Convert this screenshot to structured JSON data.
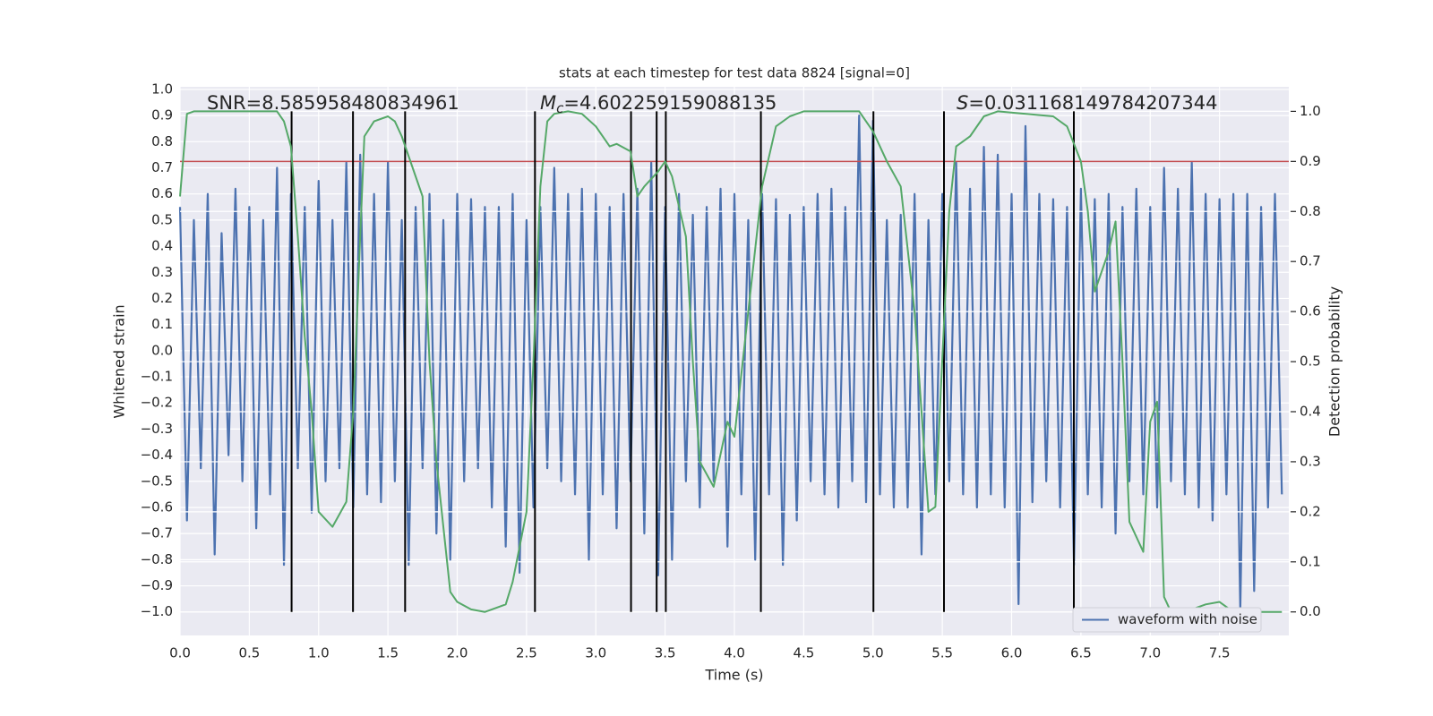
{
  "chart_data": {
    "type": "line",
    "title": "stats at each timestep for test data 8824 [signal=0]",
    "xlabel": "Time (s)",
    "ylabel": "Whitened strain",
    "y2label": "Detection probability",
    "xlim": [
      0,
      8
    ],
    "ylim": [
      -1.09,
      1.01
    ],
    "y2lim": [
      -0.047,
      1.049
    ],
    "grid": true,
    "legend": "lower right",
    "xticks": [
      {
        "value": 0,
        "label": "0.0"
      },
      {
        "value": 0.5,
        "label": "0.5"
      },
      {
        "value": 1,
        "label": "1.0"
      },
      {
        "value": 1.5,
        "label": "1.5"
      },
      {
        "value": 2,
        "label": "2.0"
      },
      {
        "value": 2.5,
        "label": "2.5"
      },
      {
        "value": 3,
        "label": "3.0"
      },
      {
        "value": 3.5,
        "label": "3.5"
      },
      {
        "value": 4,
        "label": "4.0"
      },
      {
        "value": 4.5,
        "label": "4.5"
      },
      {
        "value": 5,
        "label": "5.0"
      },
      {
        "value": 5.5,
        "label": "5.5"
      },
      {
        "value": 6,
        "label": "6.0"
      },
      {
        "value": 6.5,
        "label": "6.5"
      },
      {
        "value": 7,
        "label": "7.0"
      },
      {
        "value": 7.5,
        "label": "7.5"
      }
    ],
    "yticks": [
      {
        "value": -1,
        "label": "−1.0"
      },
      {
        "value": -0.9,
        "label": "−0.9"
      },
      {
        "value": -0.8,
        "label": "−0.8"
      },
      {
        "value": -0.7,
        "label": "−0.7"
      },
      {
        "value": -0.6,
        "label": "−0.6"
      },
      {
        "value": -0.5,
        "label": "−0.5"
      },
      {
        "value": -0.4,
        "label": "−0.4"
      },
      {
        "value": -0.3,
        "label": "−0.3"
      },
      {
        "value": -0.2,
        "label": "−0.2"
      },
      {
        "value": -0.1,
        "label": "−0.1"
      },
      {
        "value": 0,
        "label": "0.0"
      },
      {
        "value": 0.1,
        "label": "0.1"
      },
      {
        "value": 0.2,
        "label": "0.2"
      },
      {
        "value": 0.3,
        "label": "0.3"
      },
      {
        "value": 0.4,
        "label": "0.4"
      },
      {
        "value": 0.5,
        "label": "0.5"
      },
      {
        "value": 0.6,
        "label": "0.6"
      },
      {
        "value": 0.7,
        "label": "0.7"
      },
      {
        "value": 0.8,
        "label": "0.8"
      },
      {
        "value": 0.9,
        "label": "0.9"
      },
      {
        "value": 1,
        "label": "1.0"
      }
    ],
    "y2ticks": [
      {
        "value": 0,
        "label": "0.0"
      },
      {
        "value": 0.1,
        "label": "0.1"
      },
      {
        "value": 0.2,
        "label": "0.2"
      },
      {
        "value": 0.3,
        "label": "0.3"
      },
      {
        "value": 0.4,
        "label": "0.4"
      },
      {
        "value": 0.5,
        "label": "0.5"
      },
      {
        "value": 0.6,
        "label": "0.6"
      },
      {
        "value": 0.7,
        "label": "0.7"
      },
      {
        "value": 0.8,
        "label": "0.8"
      },
      {
        "value": 0.9,
        "label": "0.9"
      },
      {
        "value": 1,
        "label": "1.0"
      }
    ],
    "series": [
      {
        "name": "waveform with noise",
        "color": "#4c72b0",
        "x": [
          0,
          0.05,
          0.1,
          0.15,
          0.2,
          0.25,
          0.3,
          0.35,
          0.4,
          0.45,
          0.5,
          0.55,
          0.6,
          0.65,
          0.7,
          0.75,
          0.8,
          0.85,
          0.9,
          0.95,
          1,
          1.05,
          1.1,
          1.15,
          1.2,
          1.25,
          1.3,
          1.35,
          1.4,
          1.45,
          1.5,
          1.55,
          1.6,
          1.65,
          1.7,
          1.75,
          1.8,
          1.85,
          1.9,
          1.95,
          2,
          2.05,
          2.1,
          2.15,
          2.2,
          2.25,
          2.3,
          2.35,
          2.4,
          2.45,
          2.5,
          2.55,
          2.6,
          2.65,
          2.7,
          2.75,
          2.8,
          2.85,
          2.9,
          2.95,
          3,
          3.05,
          3.1,
          3.15,
          3.2,
          3.25,
          3.3,
          3.35,
          3.4,
          3.45,
          3.5,
          3.55,
          3.6,
          3.65,
          3.7,
          3.75,
          3.8,
          3.85,
          3.9,
          3.95,
          4,
          4.05,
          4.1,
          4.15,
          4.2,
          4.25,
          4.3,
          4.35,
          4.4,
          4.45,
          4.5,
          4.55,
          4.6,
          4.65,
          4.7,
          4.75,
          4.8,
          4.85,
          4.9,
          4.95,
          5,
          5.05,
          5.1,
          5.15,
          5.2,
          5.25,
          5.3,
          5.35,
          5.4,
          5.45,
          5.5,
          5.55,
          5.6,
          5.65,
          5.7,
          5.75,
          5.8,
          5.85,
          5.9,
          5.95,
          6,
          6.05,
          6.1,
          6.15,
          6.2,
          6.25,
          6.3,
          6.35,
          6.4,
          6.45,
          6.5,
          6.55,
          6.6,
          6.65,
          6.7,
          6.75,
          6.8,
          6.85,
          6.9,
          6.95,
          7,
          7.05,
          7.1,
          7.15,
          7.2,
          7.25,
          7.3,
          7.35,
          7.4,
          7.45,
          7.5,
          7.55,
          7.6,
          7.65,
          7.7,
          7.75,
          7.8,
          7.85,
          7.9,
          7.95
        ],
        "values": [
          0.55,
          -0.65,
          0.5,
          -0.45,
          0.6,
          -0.78,
          0.45,
          -0.4,
          0.62,
          -0.5,
          0.55,
          -0.68,
          0.5,
          -0.55,
          0.7,
          -0.82,
          0.6,
          -0.45,
          0.55,
          -0.62,
          0.65,
          -0.5,
          0.5,
          -0.45,
          0.72,
          -0.6,
          0.75,
          -0.55,
          0.6,
          -0.58,
          0.72,
          -0.5,
          0.5,
          -0.82,
          0.55,
          -0.45,
          0.6,
          -0.7,
          0.5,
          -0.8,
          0.6,
          -0.5,
          0.58,
          -0.45,
          0.55,
          -0.6,
          0.55,
          -0.75,
          0.6,
          -0.85,
          0.5,
          -0.6,
          0.55,
          -0.45,
          0.7,
          -0.5,
          0.6,
          -0.55,
          0.62,
          -0.8,
          0.6,
          -0.55,
          0.55,
          -0.68,
          0.6,
          -0.5,
          0.62,
          -0.7,
          0.72,
          -0.86,
          0.55,
          -0.8,
          0.6,
          -0.5,
          0.52,
          -0.6,
          0.55,
          -0.5,
          0.62,
          -0.75,
          0.6,
          -0.55,
          0.5,
          -0.8,
          0.6,
          -0.55,
          0.58,
          -0.82,
          0.52,
          -0.65,
          0.55,
          -0.5,
          0.6,
          -0.55,
          0.62,
          -0.6,
          0.55,
          -0.5,
          0.9,
          -0.58,
          0.88,
          -0.55,
          0.5,
          -0.6,
          0.52,
          -0.6,
          0.6,
          -0.78,
          0.5,
          -0.55,
          0.6,
          -0.5,
          0.72,
          -0.55,
          0.62,
          -0.6,
          0.78,
          -0.55,
          0.75,
          -0.6,
          0.6,
          -0.97,
          0.86,
          -0.58,
          0.6,
          -0.5,
          0.58,
          -0.6,
          0.55,
          -0.82,
          0.62,
          -0.55,
          0.58,
          -0.6,
          0.6,
          -0.7,
          0.55,
          -0.5,
          0.62,
          -0.55,
          0.55,
          -0.6,
          0.7,
          -0.5,
          0.62,
          -0.55,
          0.72,
          -0.6,
          0.6,
          -0.65,
          0.58,
          -0.55,
          0.6,
          -0.99,
          0.6,
          -0.92,
          0.55,
          -0.6,
          0.6,
          -0.55
        ]
      },
      {
        "color": "#55a868",
        "axis": "y2",
        "x": [
          0,
          0.05,
          0.1,
          0.7,
          0.75,
          0.8,
          0.85,
          0.9,
          0.95,
          1,
          1.1,
          1.2,
          1.25,
          1.3,
          1.33,
          1.4,
          1.5,
          1.55,
          1.6,
          1.7,
          1.75,
          1.8,
          1.85,
          1.95,
          2,
          2.1,
          2.2,
          2.25,
          2.35,
          2.4,
          2.5,
          2.55,
          2.6,
          2.65,
          2.7,
          2.8,
          2.9,
          3,
          3.1,
          3.15,
          3.25,
          3.3,
          3.35,
          3.45,
          3.5,
          3.55,
          3.65,
          3.7,
          3.75,
          3.85,
          3.95,
          4,
          4.1,
          4.2,
          4.3,
          4.4,
          4.5,
          4.9,
          5,
          5.1,
          5.2,
          5.3,
          5.35,
          5.4,
          5.45,
          5.55,
          5.6,
          5.7,
          5.8,
          5.9,
          6.3,
          6.4,
          6.5,
          6.55,
          6.6,
          6.7,
          6.75,
          6.8,
          6.85,
          6.95,
          7,
          7.05,
          7.1,
          7.15,
          7.3,
          7.4,
          7.5,
          7.6,
          7.7,
          7.8,
          7.95
        ],
        "values": [
          0.83,
          0.995,
          1,
          1,
          0.98,
          0.93,
          0.75,
          0.55,
          0.4,
          0.2,
          0.17,
          0.22,
          0.4,
          0.75,
          0.95,
          0.98,
          0.99,
          0.98,
          0.95,
          0.87,
          0.83,
          0.5,
          0.3,
          0.04,
          0.02,
          0.005,
          0,
          0.005,
          0.015,
          0.06,
          0.2,
          0.5,
          0.85,
          0.98,
          0.995,
          1,
          0.995,
          0.97,
          0.93,
          0.935,
          0.92,
          0.83,
          0.85,
          0.88,
          0.9,
          0.87,
          0.75,
          0.5,
          0.3,
          0.25,
          0.38,
          0.35,
          0.6,
          0.85,
          0.97,
          0.99,
          1,
          1,
          0.96,
          0.9,
          0.85,
          0.6,
          0.4,
          0.2,
          0.21,
          0.8,
          0.93,
          0.95,
          0.99,
          1,
          0.99,
          0.97,
          0.9,
          0.8,
          0.64,
          0.72,
          0.78,
          0.5,
          0.18,
          0.12,
          0.38,
          0.42,
          0.03,
          0,
          0.005,
          0.015,
          0.02,
          0,
          0.005,
          0,
          0
        ]
      }
    ],
    "hline": {
      "value": 0.9,
      "axis": "y2",
      "color": "#c44e52"
    },
    "vlines": [
      0.805,
      1.248,
      1.624,
      2.561,
      3.254,
      3.439,
      3.505,
      4.191,
      5.003,
      5.512,
      6.449
    ],
    "vline_range": [
      0,
      1
    ],
    "vline_color": "#000000",
    "annotations": [
      {
        "text": "SNR=8.585958480834961"
      },
      {
        "italic": "M",
        "sub": "c",
        "text": "=4.602259159088135"
      },
      {
        "italic": "S",
        "text": "=0.031168149784207344"
      }
    ]
  }
}
